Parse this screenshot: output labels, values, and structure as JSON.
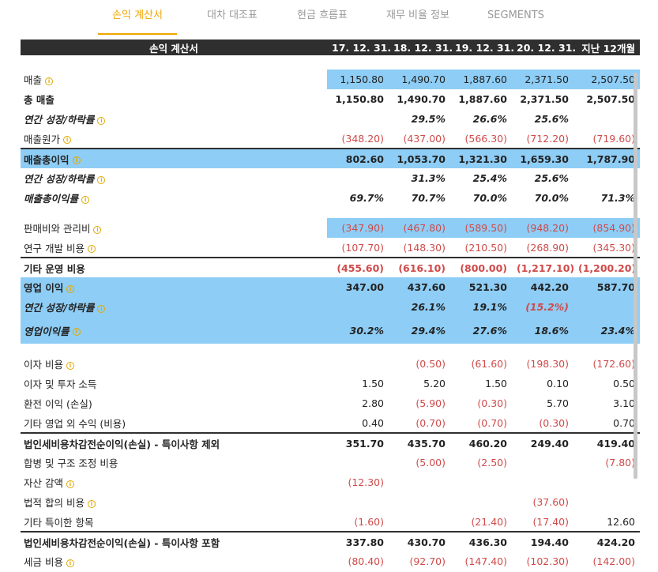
{
  "tabs": [
    {
      "label": "손익 계산서",
      "active": true
    },
    {
      "label": "대차 대조표",
      "active": false
    },
    {
      "label": "현금 흐름표",
      "active": false
    },
    {
      "label": "재무 비율 정보",
      "active": false
    },
    {
      "label": "SEGMENTS",
      "active": false
    }
  ],
  "table": {
    "header": {
      "label": "손익 계산서",
      "periods": [
        "17. 12. 31.",
        "18. 12. 31.",
        "19. 12. 31.",
        "20. 12. 31.",
        "지난 12개월"
      ]
    },
    "rows": {
      "sales": {
        "label": "매출",
        "values": [
          "1,150.80",
          "1,490.70",
          "1,887.60",
          "2,371.50",
          "2,507.50"
        ]
      },
      "total_sales": {
        "label": "총 매출",
        "values": [
          "1,150.80",
          "1,490.70",
          "1,887.60",
          "2,371.50",
          "2,507.50"
        ]
      },
      "growth1": {
        "label": "연간 성장/하락률",
        "values": [
          "",
          "29.5%",
          "26.6%",
          "25.6%",
          ""
        ]
      },
      "cogs": {
        "label": "매출원가",
        "values": [
          "(348.20)",
          "(437.00)",
          "(566.30)",
          "(712.20)",
          "(719.60)"
        ]
      },
      "gross_profit": {
        "label": "매출총이익",
        "values": [
          "802.60",
          "1,053.70",
          "1,321.30",
          "1,659.30",
          "1,787.90"
        ]
      },
      "growth2": {
        "label": "연간 성장/하락률",
        "values": [
          "",
          "31.3%",
          "25.4%",
          "25.6%",
          ""
        ]
      },
      "gross_margin": {
        "label": "매출총이익률",
        "values": [
          "69.7%",
          "70.7%",
          "70.0%",
          "70.0%",
          "71.3%"
        ]
      },
      "sga": {
        "label": "판매비와 관리비",
        "values": [
          "(347.90)",
          "(467.80)",
          "(589.50)",
          "(948.20)",
          "(854.90)"
        ]
      },
      "rnd": {
        "label": "연구 개발 비용",
        "values": [
          "(107.70)",
          "(148.30)",
          "(210.50)",
          "(268.90)",
          "(345.30)"
        ]
      },
      "other_opex": {
        "label": "기타 운영 비용",
        "values": [
          "(455.60)",
          "(616.10)",
          "(800.00)",
          "(1,217.10)",
          "(1,200.20)"
        ]
      },
      "op_income": {
        "label": "영업 이익",
        "values": [
          "347.00",
          "437.60",
          "521.30",
          "442.20",
          "587.70"
        ]
      },
      "growth3": {
        "label": "연간 성장/하락률",
        "values": [
          "",
          "26.1%",
          "19.1%",
          "(15.2%)",
          ""
        ]
      },
      "op_margin": {
        "label": "영업이익률",
        "values": [
          "30.2%",
          "29.4%",
          "27.6%",
          "18.6%",
          "23.4%"
        ]
      },
      "interest_exp": {
        "label": "이자 비용",
        "values": [
          "",
          "(0.50)",
          "(61.60)",
          "(198.30)",
          "(172.60)"
        ]
      },
      "interest_inc": {
        "label": "이자 및 투자 소득",
        "values": [
          "1.50",
          "5.20",
          "1.50",
          "0.10",
          "0.50"
        ]
      },
      "fx": {
        "label": "환전 이익 (손실)",
        "values": [
          "2.80",
          "(5.90)",
          "(0.30)",
          "5.70",
          "3.10"
        ]
      },
      "other_nonop": {
        "label": "기타 영업 외 수익 (비용)",
        "values": [
          "0.40",
          "(0.70)",
          "(0.70)",
          "(0.30)",
          "0.70"
        ]
      },
      "ebt_excl": {
        "label": "법인세비용차감전순이익(손실) - 특이사항 제외",
        "values": [
          "351.70",
          "435.70",
          "460.20",
          "249.40",
          "419.40"
        ]
      },
      "merger": {
        "label": "합병 및 구조 조정 비용",
        "values": [
          "",
          "(5.00)",
          "(2.50)",
          "",
          "(7.80)"
        ]
      },
      "impairment": {
        "label": "자산 감액",
        "values": [
          "(12.30)",
          "",
          "",
          "",
          ""
        ]
      },
      "legal": {
        "label": "법적 합의 비용",
        "values": [
          "",
          "",
          "",
          "(37.60)",
          ""
        ]
      },
      "other_unusual": {
        "label": "기타 특이한 항목",
        "values": [
          "(1.60)",
          "",
          "(21.40)",
          "(17.40)",
          "12.60"
        ]
      },
      "ebt_incl": {
        "label": "법인세비용차감전순이익(손실) - 특이사항 포함",
        "values": [
          "337.80",
          "430.70",
          "436.30",
          "194.40",
          "424.20"
        ]
      },
      "tax": {
        "label": "세금 비용",
        "values": [
          "(80.40)",
          "(92.70)",
          "(147.40)",
          "(102.30)",
          "(142.00)"
        ]
      }
    }
  },
  "colors": {
    "accent": "#f0a500",
    "header_bg": "#2f2f2f",
    "highlight": "#8ecdf5",
    "negative": "#d04a4a"
  },
  "icons": {
    "info": "info-circle-icon"
  }
}
